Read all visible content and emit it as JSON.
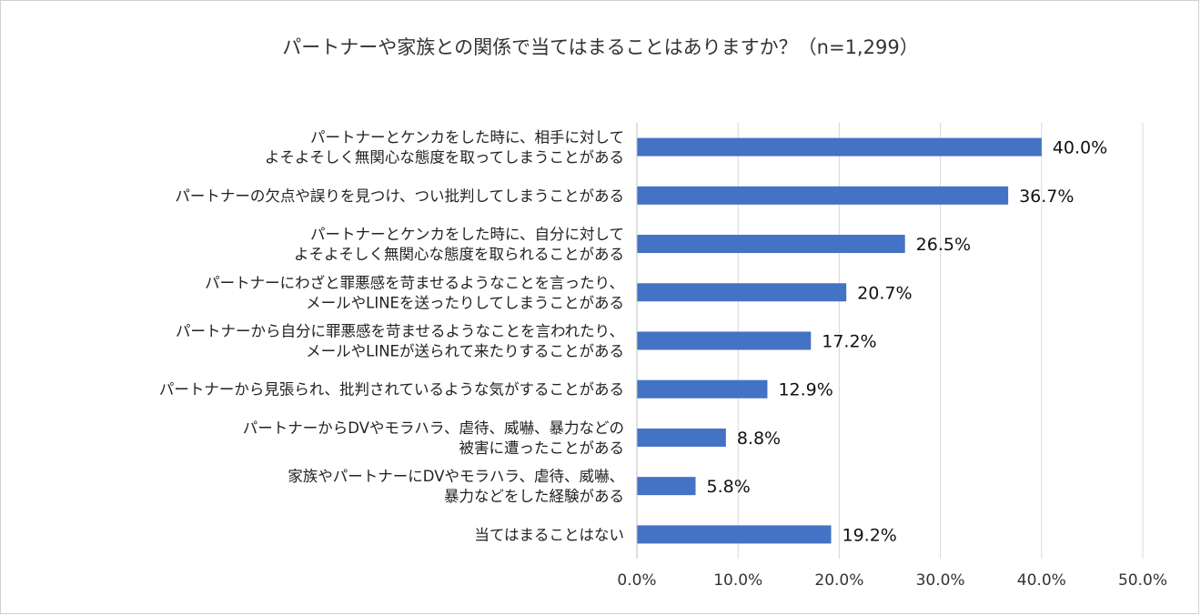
{
  "chart_data": {
    "type": "bar",
    "orientation": "horizontal",
    "title": "パートナーや家族との関係で当てはまることはありますか？（n=1,299）",
    "categories": [
      [
        "パートナーとケンカをした時に、相手に対して",
        "よそよそしく無関心な態度を取ってしまうことがある"
      ],
      [
        "パートナーの欠点や誤りを見つけ、つい批判してしまうことがある"
      ],
      [
        "パートナーとケンカをした時に、自分に対して",
        "よそよそしく無関心な態度を取られることがある"
      ],
      [
        "パートナーにわざと罪悪感を苛ませるようなことを言ったり、",
        "メールやLINEを送ったりしてしまうことがある"
      ],
      [
        "パートナーから自分に罪悪感を苛ませるようなことを言われたり、",
        "メールやLINEが送られて来たりすることがある"
      ],
      [
        "パートナーから見張られ、批判されているような気がすることがある"
      ],
      [
        "パートナーからDVやモラハラ、虐待、威嚇、暴力などの",
        "被害に遭ったことがある"
      ],
      [
        "家族やパートナーにDVやモラハラ、虐待、威嚇、",
        "暴力などをした経験がある"
      ],
      [
        "当てはまることはない"
      ]
    ],
    "values": [
      40.0,
      36.7,
      26.5,
      20.7,
      17.2,
      12.9,
      8.8,
      5.8,
      19.2
    ],
    "value_labels": [
      "40.0%",
      "36.7%",
      "26.5%",
      "20.7%",
      "17.2%",
      "12.9%",
      "8.8%",
      "5.8%",
      "19.2%"
    ],
    "xlim": [
      0,
      50
    ],
    "xticks": [
      0,
      10,
      20,
      30,
      40,
      50
    ],
    "xtick_labels": [
      "0.0%",
      "10.0%",
      "20.0%",
      "30.0%",
      "40.0%",
      "50.0%"
    ],
    "grid": true,
    "bar_color": "#4472C4",
    "grid_color": "#d9d9d9"
  }
}
